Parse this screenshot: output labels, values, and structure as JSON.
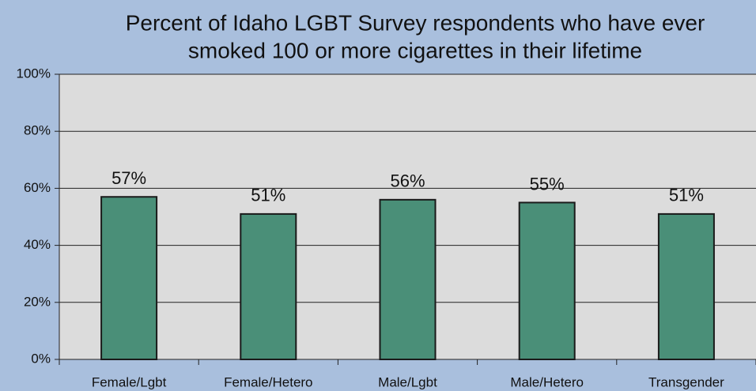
{
  "chart_data": {
    "type": "bar",
    "title": [
      "Percent of Idaho LGBT Survey respondents who have ever",
      "smoked 100 or more cigarettes in their lifetime"
    ],
    "categories": [
      "Female/Lgbt",
      "Female/Hetero",
      "Male/Lgbt",
      "Male/Hetero",
      "Transgender"
    ],
    "values": [
      57,
      51,
      56,
      55,
      51
    ],
    "value_labels": [
      "57%",
      "51%",
      "56%",
      "55%",
      "51%"
    ],
    "color": "#4a8f78",
    "ylim": [
      0,
      100
    ],
    "yticks": [
      {
        "value": 0,
        "label": "0%"
      },
      {
        "value": 20,
        "label": "20%"
      },
      {
        "value": 40,
        "label": "40%"
      },
      {
        "value": 60,
        "label": "60%"
      },
      {
        "value": 80,
        "label": "80%"
      },
      {
        "value": 100,
        "label": "100%"
      }
    ],
    "grid": true
  }
}
